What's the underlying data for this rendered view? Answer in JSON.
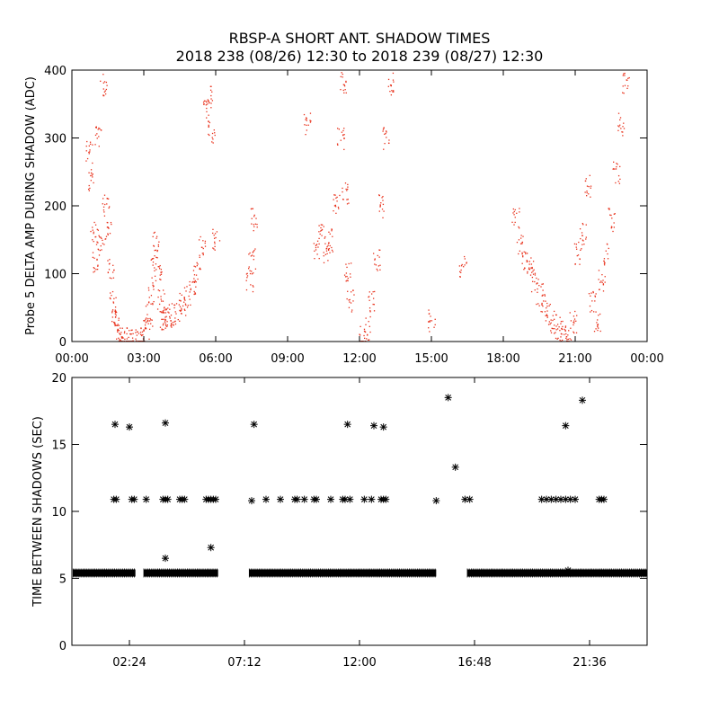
{
  "header": {
    "title_line1": "RBSP-A SHORT ANT. SHADOW TIMES",
    "title_line2": "2018 238 (08/26) 12:30 to 2018 239 (08/27) 12:30"
  },
  "chart_data": [
    {
      "type": "scatter",
      "title": "",
      "ylabel": "Probe 5 DELTA AMP DURING SHADOW (ADC)",
      "xlabel": "",
      "xlim": [
        0,
        24
      ],
      "ylim": [
        0,
        400
      ],
      "xticks": [
        {
          "v": 0,
          "label": "00:00"
        },
        {
          "v": 3,
          "label": "03:00"
        },
        {
          "v": 6,
          "label": "06:00"
        },
        {
          "v": 9,
          "label": "09:00"
        },
        {
          "v": 12,
          "label": "12:00"
        },
        {
          "v": 15,
          "label": "15:00"
        },
        {
          "v": 18,
          "label": "18:00"
        },
        {
          "v": 21,
          "label": "21:00"
        },
        {
          "v": 24,
          "label": "00:00"
        }
      ],
      "yticks": [
        {
          "v": 0,
          "label": "0"
        },
        {
          "v": 100,
          "label": "100"
        },
        {
          "v": 200,
          "label": "200"
        },
        {
          "v": 300,
          "label": "300"
        },
        {
          "v": 400,
          "label": "400"
        }
      ],
      "color": "#e8301a",
      "series": [
        {
          "x": [
            0.7,
            0.8,
            0.9,
            1.0,
            1.1,
            1.2,
            1.3,
            1.4,
            1.5,
            1.6,
            1.7,
            1.8,
            1.9,
            2.0,
            2.2,
            2.4,
            2.6,
            2.8,
            2.9,
            3.1,
            3.2,
            3.3,
            3.4,
            3.5,
            3.6,
            3.7,
            3.8,
            3.9,
            4.0,
            4.2,
            4.4,
            4.6,
            4.8,
            5.0,
            5.2,
            5.4,
            5.6,
            5.7,
            5.8,
            6.0,
            7.4,
            7.5,
            7.6,
            9.8,
            10.2,
            10.4,
            10.6,
            10.8,
            11.0,
            11.2,
            11.3,
            11.4,
            11.5,
            11.6,
            12.1,
            12.3,
            12.5,
            12.7,
            12.9,
            13.1,
            13.3,
            15.0,
            16.3,
            18.5,
            18.7,
            18.9,
            19.1,
            19.3,
            19.5,
            19.7,
            19.9,
            20.1,
            20.3,
            20.5,
            20.7,
            20.9,
            21.1,
            21.3,
            21.5,
            21.7,
            21.9,
            22.1,
            22.3,
            22.5,
            22.7,
            22.9,
            23.1
          ],
          "y": [
            280,
            240,
            160,
            120,
            300,
            150,
            380,
            200,
            160,
            110,
            60,
            30,
            20,
            12,
            6,
            3,
            1,
            4,
            8,
            20,
            40,
            70,
            110,
            150,
            100,
            60,
            35,
            38,
            35,
            40,
            45,
            55,
            65,
            80,
            100,
            140,
            340,
            360,
            310,
            150,
            90,
            120,
            180,
            320,
            140,
            160,
            130,
            150,
            200,
            300,
            380,
            220,
            100,
            60,
            8,
            20,
            60,
            120,
            200,
            300,
            380,
            30,
            110,
            180,
            140,
            120,
            110,
            90,
            70,
            55,
            40,
            30,
            20,
            15,
            10,
            30,
            130,
            160,
            230,
            60,
            30,
            90,
            130,
            180,
            250,
            320,
            380
          ]
        }
      ]
    },
    {
      "type": "scatter",
      "title": "",
      "ylabel": "TIME BETWEEN SHADOWS (SEC)",
      "xlabel": "",
      "xlim": [
        0,
        24
      ],
      "ylim": [
        0,
        20
      ],
      "xticks": [
        {
          "v": 2.4,
          "label": "02:24"
        },
        {
          "v": 7.2,
          "label": "07:12"
        },
        {
          "v": 12.0,
          "label": "12:00"
        },
        {
          "v": 16.8,
          "label": "16:48"
        },
        {
          "v": 21.6,
          "label": "21:36"
        }
      ],
      "yticks": [
        {
          "v": 0,
          "label": "0"
        },
        {
          "v": 5,
          "label": "5"
        },
        {
          "v": 10,
          "label": "10"
        },
        {
          "v": 15,
          "label": "15"
        },
        {
          "v": 20,
          "label": "20"
        }
      ],
      "marker": "*",
      "color": "#000000",
      "baseline": {
        "y": 5.4,
        "ranges": [
          [
            0.05,
            2.65
          ],
          [
            3.0,
            6.1
          ],
          [
            7.4,
            15.2
          ],
          [
            16.5,
            24.0
          ]
        ]
      },
      "points": [
        {
          "x": 1.8,
          "y": 16.5
        },
        {
          "x": 2.4,
          "y": 16.3
        },
        {
          "x": 3.9,
          "y": 16.6
        },
        {
          "x": 7.6,
          "y": 16.5
        },
        {
          "x": 11.5,
          "y": 16.5
        },
        {
          "x": 12.6,
          "y": 16.4
        },
        {
          "x": 13.0,
          "y": 16.3
        },
        {
          "x": 15.7,
          "y": 18.5
        },
        {
          "x": 16.0,
          "y": 13.3
        },
        {
          "x": 20.6,
          "y": 16.4
        },
        {
          "x": 21.3,
          "y": 18.3
        },
        {
          "x": 1.75,
          "y": 10.9
        },
        {
          "x": 1.85,
          "y": 10.9
        },
        {
          "x": 2.5,
          "y": 10.9
        },
        {
          "x": 2.6,
          "y": 10.9
        },
        {
          "x": 3.1,
          "y": 10.9
        },
        {
          "x": 3.8,
          "y": 10.9
        },
        {
          "x": 3.9,
          "y": 10.9
        },
        {
          "x": 4.0,
          "y": 10.9
        },
        {
          "x": 4.5,
          "y": 10.9
        },
        {
          "x": 4.6,
          "y": 10.9
        },
        {
          "x": 4.7,
          "y": 10.9
        },
        {
          "x": 5.6,
          "y": 10.9
        },
        {
          "x": 5.7,
          "y": 10.9
        },
        {
          "x": 5.8,
          "y": 10.9
        },
        {
          "x": 5.9,
          "y": 10.9
        },
        {
          "x": 6.0,
          "y": 10.9
        },
        {
          "x": 7.5,
          "y": 10.8
        },
        {
          "x": 8.1,
          "y": 10.9
        },
        {
          "x": 8.7,
          "y": 10.9
        },
        {
          "x": 9.3,
          "y": 10.9
        },
        {
          "x": 9.4,
          "y": 10.9
        },
        {
          "x": 9.7,
          "y": 10.9
        },
        {
          "x": 10.1,
          "y": 10.9
        },
        {
          "x": 10.2,
          "y": 10.9
        },
        {
          "x": 10.8,
          "y": 10.9
        },
        {
          "x": 11.3,
          "y": 10.9
        },
        {
          "x": 11.4,
          "y": 10.9
        },
        {
          "x": 11.6,
          "y": 10.9
        },
        {
          "x": 12.2,
          "y": 10.9
        },
        {
          "x": 12.5,
          "y": 10.9
        },
        {
          "x": 12.9,
          "y": 10.9
        },
        {
          "x": 13.0,
          "y": 10.9
        },
        {
          "x": 13.1,
          "y": 10.9
        },
        {
          "x": 15.2,
          "y": 10.8
        },
        {
          "x": 16.4,
          "y": 10.9
        },
        {
          "x": 16.6,
          "y": 10.9
        },
        {
          "x": 19.6,
          "y": 10.9
        },
        {
          "x": 19.8,
          "y": 10.9
        },
        {
          "x": 20.0,
          "y": 10.9
        },
        {
          "x": 20.2,
          "y": 10.9
        },
        {
          "x": 20.4,
          "y": 10.9
        },
        {
          "x": 20.6,
          "y": 10.9
        },
        {
          "x": 20.8,
          "y": 10.9
        },
        {
          "x": 21.0,
          "y": 10.9
        },
        {
          "x": 22.0,
          "y": 10.9
        },
        {
          "x": 22.1,
          "y": 10.9
        },
        {
          "x": 22.2,
          "y": 10.9
        },
        {
          "x": 3.9,
          "y": 6.5
        },
        {
          "x": 5.8,
          "y": 7.3
        },
        {
          "x": 20.7,
          "y": 5.6
        }
      ]
    }
  ]
}
